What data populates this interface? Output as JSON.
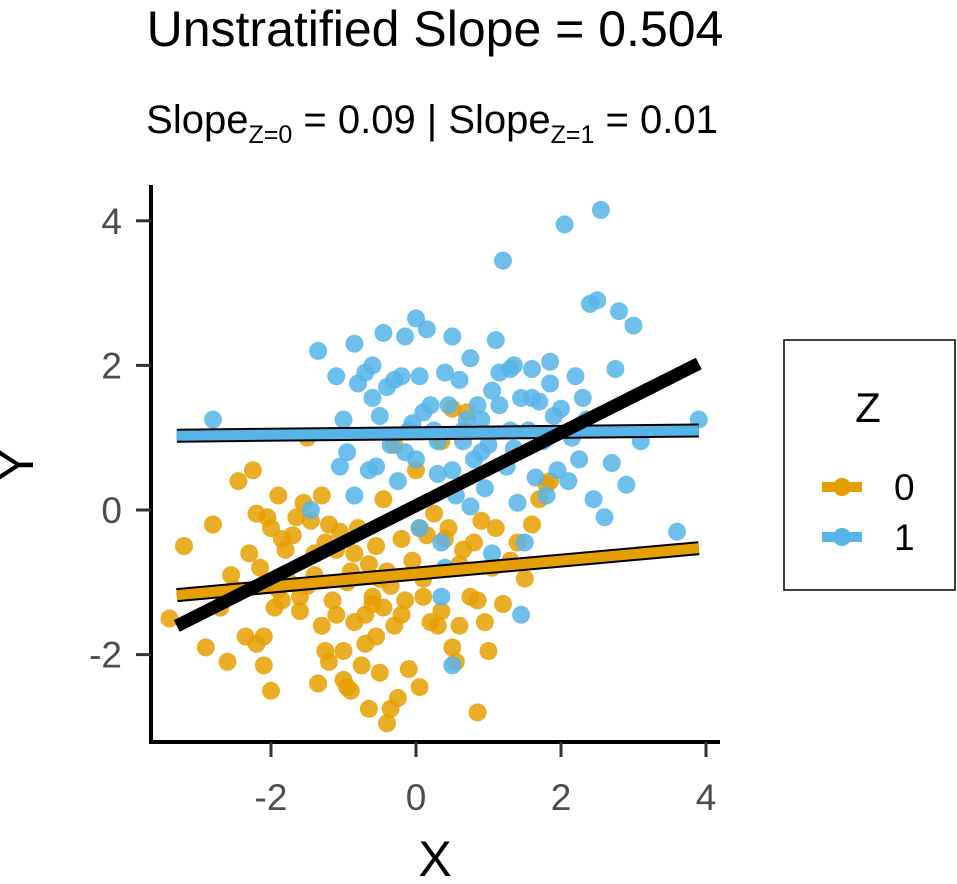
{
  "chart_data": {
    "type": "scatter",
    "title": "Unstratified Slope = 0.504",
    "subtitle": {
      "slope_word": "Slope",
      "z0_sub": "Z=0",
      "z0_value": " = 0.09 | ",
      "z1_sub": "Z=1",
      "z1_value": " = 0.01"
    },
    "xlabel": "X",
    "ylabel": "Y",
    "xlim": [
      -3.5,
      4.1
    ],
    "ylim": [
      -3.2,
      4.5
    ],
    "xticks": [
      -2,
      0,
      2,
      4
    ],
    "xtick_labels": [
      "-2",
      "0",
      "2",
      "4"
    ],
    "yticks": [
      -2,
      0,
      2,
      4
    ],
    "ytick_labels": [
      "-2",
      "0",
      "2",
      "4"
    ],
    "grid": false,
    "legend": {
      "title": "Z",
      "position": "right",
      "entries": [
        "0",
        "1"
      ]
    },
    "colors": {
      "z0": "#E69F00",
      "z1": "#56B4E9",
      "overall_line": "#000000"
    },
    "series": [
      {
        "name": "0",
        "color": "#E69F00",
        "fit": {
          "intercept": -0.88,
          "slope": 0.09,
          "x_range": [
            -3.3,
            3.9
          ]
        },
        "points": [
          [
            -3.4,
            -1.5
          ],
          [
            -3.2,
            -0.5
          ],
          [
            -2.9,
            -1.9
          ],
          [
            -2.8,
            -0.2
          ],
          [
            -2.6,
            -2.1
          ],
          [
            -2.5,
            -1.1
          ],
          [
            -2.45,
            0.4
          ],
          [
            -2.3,
            -0.6
          ],
          [
            -2.25,
            0.55
          ],
          [
            -2.2,
            -0.05
          ],
          [
            -2.2,
            -1.85
          ],
          [
            -2.15,
            -0.8
          ],
          [
            -2.1,
            -1.75
          ],
          [
            -2.1,
            -2.15
          ],
          [
            -2.05,
            -0.1
          ],
          [
            -2.0,
            -0.25
          ],
          [
            -2.0,
            -2.5
          ],
          [
            -1.95,
            -1.35
          ],
          [
            -1.9,
            0.2
          ],
          [
            -1.85,
            -1.25
          ],
          [
            -1.8,
            -0.55
          ],
          [
            -1.75,
            -1.0
          ],
          [
            -1.7,
            -0.35
          ],
          [
            -1.65,
            -0.1
          ],
          [
            -1.6,
            -1.2
          ],
          [
            -1.55,
            0.1
          ],
          [
            -1.5,
            1.0
          ],
          [
            -1.5,
            -1.05
          ],
          [
            -1.45,
            -0.15
          ],
          [
            -1.4,
            -0.9
          ],
          [
            -1.35,
            -2.4
          ],
          [
            -1.3,
            0.2
          ],
          [
            -1.3,
            -1.6
          ],
          [
            -1.25,
            -0.45
          ],
          [
            -1.2,
            -2.1
          ],
          [
            -1.15,
            -1.25
          ],
          [
            -1.1,
            -0.55
          ],
          [
            -1.05,
            -0.3
          ],
          [
            -1.0,
            -1.95
          ],
          [
            -1.0,
            -2.35
          ],
          [
            -0.95,
            -1.0
          ],
          [
            -0.9,
            -0.85
          ],
          [
            -0.9,
            -2.5
          ],
          [
            -0.85,
            -1.55
          ],
          [
            -0.8,
            -0.25
          ],
          [
            -0.75,
            -2.15
          ],
          [
            -0.7,
            -1.45
          ],
          [
            -0.65,
            -0.75
          ],
          [
            -0.65,
            -2.75
          ],
          [
            -0.6,
            -1.2
          ],
          [
            -0.55,
            -0.5
          ],
          [
            -0.55,
            -1.75
          ],
          [
            -0.5,
            -2.25
          ],
          [
            -0.45,
            0.15
          ],
          [
            -0.45,
            -1.35
          ],
          [
            -0.4,
            -0.85
          ],
          [
            -0.4,
            -2.95
          ],
          [
            -0.35,
            -1.05
          ],
          [
            -0.3,
            0.9
          ],
          [
            -0.3,
            -1.6
          ],
          [
            -0.25,
            -2.6
          ],
          [
            -0.2,
            -0.4
          ],
          [
            -0.15,
            -1.25
          ],
          [
            -0.1,
            -2.2
          ],
          [
            -0.05,
            -0.7
          ],
          [
            0.0,
            0.55
          ],
          [
            0.05,
            -2.45
          ],
          [
            0.1,
            -1.2
          ],
          [
            0.15,
            -0.35
          ],
          [
            0.2,
            -1.55
          ],
          [
            0.25,
            -0.05
          ],
          [
            0.3,
            -1.6
          ],
          [
            0.35,
            0.95
          ],
          [
            0.4,
            -0.4
          ],
          [
            0.45,
            -0.25
          ],
          [
            0.5,
            1.4
          ],
          [
            0.5,
            -1.9
          ],
          [
            0.55,
            -2.1
          ],
          [
            0.6,
            -0.75
          ],
          [
            0.65,
            -0.55
          ],
          [
            0.7,
            1.35
          ],
          [
            0.75,
            -1.2
          ],
          [
            0.8,
            -0.45
          ],
          [
            0.85,
            -1.25
          ],
          [
            0.85,
            -2.8
          ],
          [
            0.9,
            -0.15
          ],
          [
            0.95,
            -1.55
          ],
          [
            1.0,
            -1.95
          ],
          [
            1.05,
            -0.8
          ],
          [
            1.1,
            -0.25
          ],
          [
            1.2,
            -1.3
          ],
          [
            1.3,
            -0.7
          ],
          [
            1.4,
            -0.45
          ],
          [
            1.5,
            -0.95
          ],
          [
            1.6,
            -0.2
          ],
          [
            1.7,
            0.15
          ],
          [
            1.8,
            0.35
          ],
          [
            1.85,
            0.4
          ],
          [
            -2.7,
            -1.35
          ],
          [
            -2.35,
            -1.75
          ],
          [
            -1.85,
            -0.4
          ],
          [
            -1.6,
            -1.4
          ],
          [
            -1.4,
            -0.6
          ],
          [
            -1.1,
            -1.45
          ],
          [
            -0.85,
            -0.6
          ],
          [
            -0.7,
            -1.85
          ],
          [
            -0.5,
            -0.95
          ],
          [
            -0.2,
            -1.45
          ],
          [
            0.1,
            -0.95
          ],
          [
            0.35,
            -1.4
          ],
          [
            0.6,
            -1.6
          ],
          [
            -1.25,
            -1.95
          ],
          [
            -0.95,
            -2.45
          ],
          [
            -0.35,
            -2.75
          ],
          [
            -2.55,
            -0.9
          ],
          [
            -1.9,
            -1.1
          ],
          [
            -1.2,
            -0.2
          ],
          [
            0.05,
            -0.25
          ],
          [
            -0.6,
            -1.3
          ]
        ]
      },
      {
        "name": "1",
        "color": "#56B4E9",
        "fit": {
          "intercept": 1.06,
          "slope": 0.01,
          "x_range": [
            -3.3,
            3.9
          ]
        },
        "points": [
          [
            -2.8,
            1.25
          ],
          [
            -1.35,
            2.2
          ],
          [
            -1.1,
            1.85
          ],
          [
            -1.05,
            0.6
          ],
          [
            -1.0,
            1.25
          ],
          [
            -0.95,
            0.8
          ],
          [
            -0.85,
            2.3
          ],
          [
            -0.8,
            1.75
          ],
          [
            -0.7,
            1.9
          ],
          [
            -0.65,
            0.55
          ],
          [
            -0.6,
            2.0
          ],
          [
            -0.55,
            0.6
          ],
          [
            -0.5,
            1.3
          ],
          [
            -0.45,
            2.45
          ],
          [
            -0.4,
            1.7
          ],
          [
            -0.35,
            0.9
          ],
          [
            -0.3,
            1.8
          ],
          [
            -0.25,
            0.4
          ],
          [
            -0.2,
            1.85
          ],
          [
            -0.15,
            2.4
          ],
          [
            -0.1,
            1.1
          ],
          [
            -0.05,
            1.2
          ],
          [
            0.0,
            2.65
          ],
          [
            0.0,
            0.7
          ],
          [
            0.05,
            1.85
          ],
          [
            0.1,
            1.35
          ],
          [
            0.15,
            2.5
          ],
          [
            0.2,
            1.45
          ],
          [
            0.25,
            1.1
          ],
          [
            0.3,
            0.5
          ],
          [
            0.35,
            -0.45
          ],
          [
            0.4,
            -0.8
          ],
          [
            0.4,
            1.9
          ],
          [
            0.45,
            1.45
          ],
          [
            0.5,
            2.4
          ],
          [
            0.5,
            0.55
          ],
          [
            0.55,
            0.2
          ],
          [
            0.6,
            1.8
          ],
          [
            0.65,
            0.95
          ],
          [
            0.7,
            1.25
          ],
          [
            0.75,
            0.05
          ],
          [
            0.8,
            0.7
          ],
          [
            0.85,
            1.45
          ],
          [
            0.9,
            1.25
          ],
          [
            0.95,
            0.3
          ],
          [
            1.0,
            0.9
          ],
          [
            1.05,
            -0.6
          ],
          [
            1.1,
            2.35
          ],
          [
            1.15,
            1.45
          ],
          [
            1.2,
            3.45
          ],
          [
            1.25,
            0.6
          ],
          [
            1.3,
            1.1
          ],
          [
            1.35,
            0.85
          ],
          [
            1.4,
            0.1
          ],
          [
            1.45,
            1.55
          ],
          [
            1.5,
            -0.45
          ],
          [
            1.55,
            1.1
          ],
          [
            1.6,
            1.95
          ],
          [
            1.65,
            0.45
          ],
          [
            1.7,
            1.5
          ],
          [
            1.75,
            0.95
          ],
          [
            1.8,
            0.2
          ],
          [
            1.85,
            1.75
          ],
          [
            1.9,
            1.3
          ],
          [
            1.95,
            0.55
          ],
          [
            2.0,
            1.4
          ],
          [
            2.05,
            3.95
          ],
          [
            2.1,
            0.4
          ],
          [
            2.15,
            1.0
          ],
          [
            2.2,
            1.85
          ],
          [
            2.25,
            0.7
          ],
          [
            2.35,
            1.25
          ],
          [
            2.4,
            2.85
          ],
          [
            2.45,
            0.15
          ],
          [
            2.55,
            4.15
          ],
          [
            2.6,
            -0.1
          ],
          [
            2.7,
            0.65
          ],
          [
            2.75,
            1.95
          ],
          [
            2.8,
            2.75
          ],
          [
            2.9,
            0.35
          ],
          [
            3.0,
            2.55
          ],
          [
            3.1,
            0.95
          ],
          [
            3.6,
            -0.3
          ],
          [
            3.9,
            1.25
          ],
          [
            0.5,
            -2.15
          ],
          [
            0.35,
            -1.2
          ],
          [
            1.45,
            -1.45
          ],
          [
            -1.45,
            -0.0
          ],
          [
            -0.85,
            0.2
          ],
          [
            0.05,
            -0.25
          ],
          [
            0.9,
            0.8
          ],
          [
            1.3,
            1.95
          ],
          [
            1.6,
            1.55
          ],
          [
            2.5,
            2.9
          ],
          [
            0.75,
            2.1
          ],
          [
            1.15,
            1.9
          ],
          [
            -0.15,
            0.8
          ],
          [
            0.65,
            1.1
          ],
          [
            1.05,
            1.65
          ],
          [
            1.85,
            2.05
          ],
          [
            2.3,
            1.55
          ],
          [
            0.3,
            0.95
          ],
          [
            -0.6,
            1.55
          ],
          [
            1.35,
            2.0
          ]
        ]
      }
    ],
    "overall_fit": {
      "label": "Unstratified",
      "intercept": 0.06,
      "slope": 0.504,
      "x_range": [
        -3.3,
        3.9
      ]
    }
  }
}
